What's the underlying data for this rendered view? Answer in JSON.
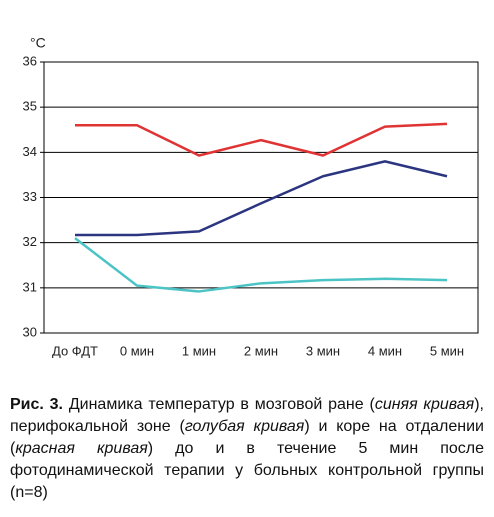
{
  "chart_data": {
    "type": "line",
    "y_label": "°C",
    "categories": [
      "До ФДТ",
      "0 мин",
      "1 мин",
      "2 мин",
      "3 мин",
      "4 мин",
      "5 мин"
    ],
    "series": [
      {
        "color": "#e03434",
        "values": [
          34.6,
          34.6,
          33.93,
          34.27,
          33.93,
          34.57,
          34.63
        ]
      },
      {
        "color": "#2c3580",
        "values": [
          32.17,
          32.17,
          32.25,
          32.87,
          33.47,
          33.8,
          33.47
        ]
      },
      {
        "color": "#4cc4c6",
        "values": [
          32.1,
          31.05,
          30.92,
          31.1,
          31.17,
          31.2,
          31.17
        ]
      }
    ],
    "ylim": [
      30,
      36
    ],
    "yticks": [
      30,
      31,
      32,
      33,
      34,
      35,
      36
    ],
    "grid": true
  },
  "caption": [
    {
      "text": "Рис. 3.",
      "style": "bold"
    },
    {
      "text": " Динамика температур в мозговой ране (",
      "style": "normal"
    },
    {
      "text": "синяя кривая",
      "style": "italic"
    },
    {
      "text": "), перифокальной зоне (",
      "style": "normal"
    },
    {
      "text": "голубая кривая",
      "style": "italic"
    },
    {
      "text": ") и коре на отдалении (",
      "style": "normal"
    },
    {
      "text": "красная кривая",
      "style": "italic"
    },
    {
      "text": ") до и в течение 5 мин после фотодинамической терапии у больных контрольной группы (n=8)",
      "style": "normal"
    }
  ]
}
